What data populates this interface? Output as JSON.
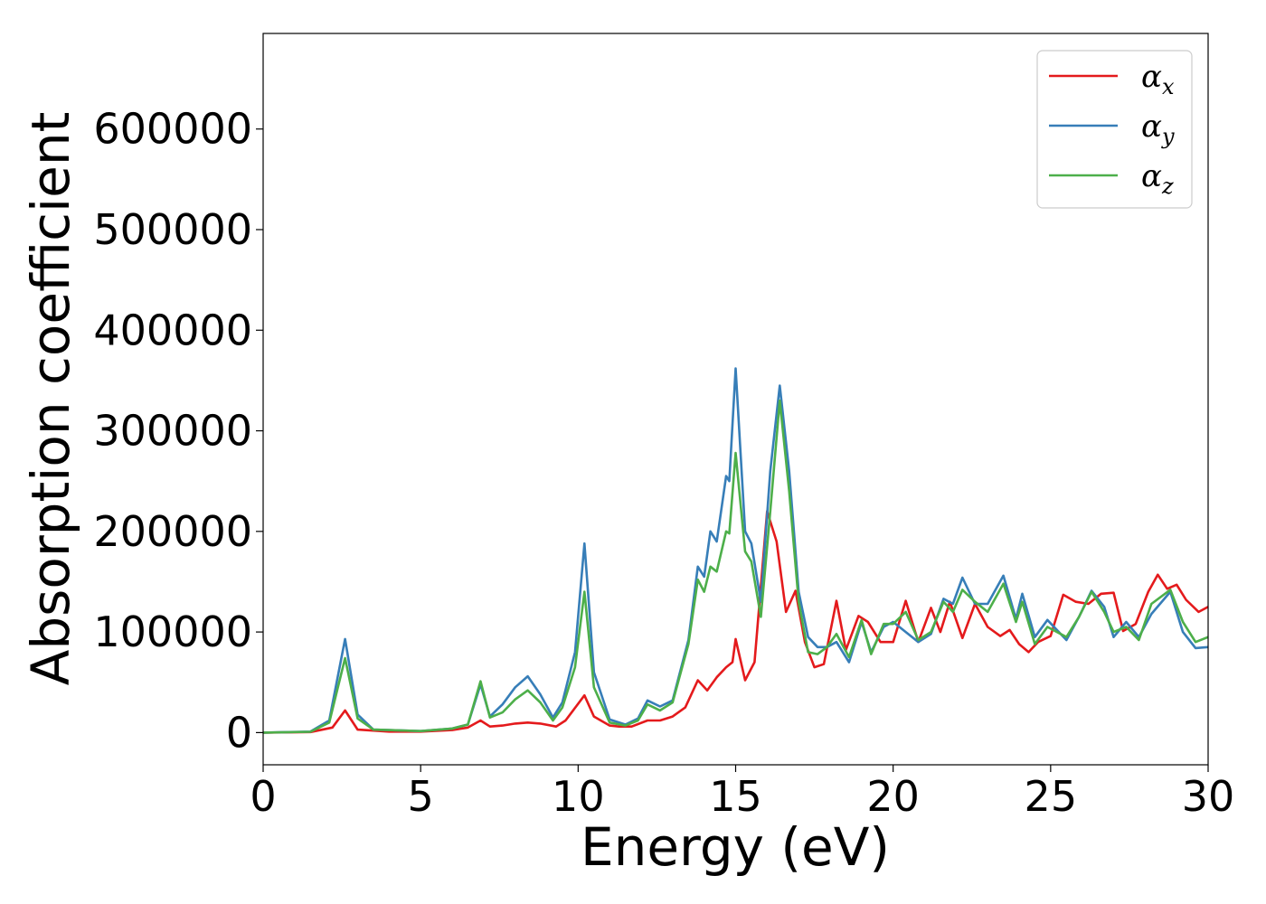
{
  "chart_data": {
    "type": "line",
    "xlabel": "Energy (eV)",
    "ylabel": "Absorption coefficient",
    "xlim": [
      0,
      30
    ],
    "ylim": [
      -32000,
      695000
    ],
    "xticks": [
      0,
      5,
      10,
      15,
      20,
      25,
      30
    ],
    "yticks": [
      0,
      100000,
      200000,
      300000,
      400000,
      500000,
      600000
    ],
    "grid": false,
    "legend_placement": "top-right",
    "series": [
      {
        "name": "αx",
        "symbol": "α",
        "subscript": "x",
        "color": "#e41a1c",
        "points": [
          [
            0,
            0
          ],
          [
            1.5,
            500
          ],
          [
            2.2,
            5000
          ],
          [
            2.6,
            22000
          ],
          [
            3.0,
            3000
          ],
          [
            4,
            1000
          ],
          [
            5,
            1000
          ],
          [
            6,
            2500
          ],
          [
            6.5,
            5000
          ],
          [
            6.9,
            12000
          ],
          [
            7.2,
            6000
          ],
          [
            7.6,
            7000
          ],
          [
            8,
            9000
          ],
          [
            8.4,
            10000
          ],
          [
            8.8,
            9000
          ],
          [
            9.3,
            6000
          ],
          [
            9.6,
            12000
          ],
          [
            10.2,
            37000
          ],
          [
            10.5,
            16000
          ],
          [
            11,
            7000
          ],
          [
            11.3,
            6000
          ],
          [
            11.7,
            6000
          ],
          [
            12.2,
            12000
          ],
          [
            12.6,
            12000
          ],
          [
            13,
            16000
          ],
          [
            13.4,
            25000
          ],
          [
            13.8,
            52000
          ],
          [
            14.1,
            42000
          ],
          [
            14.4,
            55000
          ],
          [
            14.7,
            65000
          ],
          [
            14.9,
            70000
          ],
          [
            15.0,
            93000
          ],
          [
            15.3,
            52000
          ],
          [
            15.6,
            70000
          ],
          [
            16.0,
            220000
          ],
          [
            16.3,
            190000
          ],
          [
            16.6,
            120000
          ],
          [
            16.9,
            141000
          ],
          [
            17.2,
            90000
          ],
          [
            17.5,
            65000
          ],
          [
            17.8,
            68000
          ],
          [
            18.2,
            131000
          ],
          [
            18.5,
            82000
          ],
          [
            18.9,
            116000
          ],
          [
            19.2,
            110000
          ],
          [
            19.6,
            90000
          ],
          [
            20,
            90000
          ],
          [
            20.4,
            131000
          ],
          [
            20.8,
            90000
          ],
          [
            21.2,
            124000
          ],
          [
            21.5,
            100000
          ],
          [
            21.8,
            130000
          ],
          [
            22.2,
            94000
          ],
          [
            22.6,
            128000
          ],
          [
            23,
            105000
          ],
          [
            23.4,
            96000
          ],
          [
            23.7,
            102000
          ],
          [
            24,
            88000
          ],
          [
            24.3,
            80000
          ],
          [
            24.6,
            90000
          ],
          [
            25,
            96000
          ],
          [
            25.4,
            137000
          ],
          [
            25.8,
            130000
          ],
          [
            26.2,
            128000
          ],
          [
            26.6,
            138000
          ],
          [
            27,
            139000
          ],
          [
            27.3,
            101000
          ],
          [
            27.7,
            108000
          ],
          [
            28.1,
            140000
          ],
          [
            28.4,
            157000
          ],
          [
            28.7,
            143000
          ],
          [
            29,
            147000
          ],
          [
            29.3,
            132000
          ],
          [
            29.7,
            120000
          ],
          [
            30,
            125000
          ]
        ]
      },
      {
        "name": "αy",
        "symbol": "α",
        "subscript": "y",
        "color": "#377eb8",
        "points": [
          [
            0,
            0
          ],
          [
            1.5,
            1000
          ],
          [
            2.1,
            12000
          ],
          [
            2.6,
            93000
          ],
          [
            3.0,
            18000
          ],
          [
            3.5,
            3000
          ],
          [
            5,
            1500
          ],
          [
            6,
            4000
          ],
          [
            6.5,
            8000
          ],
          [
            6.9,
            48000
          ],
          [
            7.2,
            16000
          ],
          [
            7.6,
            28000
          ],
          [
            8,
            45000
          ],
          [
            8.4,
            56000
          ],
          [
            8.8,
            38000
          ],
          [
            9.2,
            15000
          ],
          [
            9.5,
            30000
          ],
          [
            9.9,
            80000
          ],
          [
            10.2,
            188000
          ],
          [
            10.5,
            60000
          ],
          [
            11,
            13000
          ],
          [
            11.5,
            8000
          ],
          [
            11.9,
            14000
          ],
          [
            12.2,
            32000
          ],
          [
            12.6,
            26000
          ],
          [
            13,
            32000
          ],
          [
            13.5,
            92000
          ],
          [
            13.8,
            165000
          ],
          [
            14.0,
            155000
          ],
          [
            14.2,
            200000
          ],
          [
            14.4,
            190000
          ],
          [
            14.7,
            255000
          ],
          [
            14.8,
            250000
          ],
          [
            15.0,
            362000
          ],
          [
            15.3,
            200000
          ],
          [
            15.5,
            188000
          ],
          [
            15.8,
            130000
          ],
          [
            16.1,
            260000
          ],
          [
            16.4,
            345000
          ],
          [
            16.7,
            260000
          ],
          [
            17.0,
            140000
          ],
          [
            17.3,
            95000
          ],
          [
            17.6,
            85000
          ],
          [
            17.9,
            85000
          ],
          [
            18.2,
            90000
          ],
          [
            18.6,
            70000
          ],
          [
            19,
            110000
          ],
          [
            19.3,
            80000
          ],
          [
            19.7,
            105000
          ],
          [
            20,
            110000
          ],
          [
            20.4,
            100000
          ],
          [
            20.8,
            90000
          ],
          [
            21.2,
            98000
          ],
          [
            21.6,
            133000
          ],
          [
            21.9,
            128000
          ],
          [
            22.2,
            154000
          ],
          [
            22.6,
            128000
          ],
          [
            23,
            128000
          ],
          [
            23.5,
            156000
          ],
          [
            23.9,
            113000
          ],
          [
            24.1,
            138000
          ],
          [
            24.5,
            95000
          ],
          [
            24.9,
            112000
          ],
          [
            25.5,
            92000
          ],
          [
            25.9,
            115000
          ],
          [
            26.3,
            141000
          ],
          [
            26.7,
            125000
          ],
          [
            27,
            95000
          ],
          [
            27.4,
            110000
          ],
          [
            27.8,
            95000
          ],
          [
            28.2,
            118000
          ],
          [
            28.8,
            140000
          ],
          [
            29.2,
            100000
          ],
          [
            29.6,
            84000
          ],
          [
            30,
            85000
          ]
        ]
      },
      {
        "name": "αz",
        "symbol": "α",
        "subscript": "z",
        "color": "#4daf4a",
        "points": [
          [
            0,
            0
          ],
          [
            1.5,
            800
          ],
          [
            2.1,
            10000
          ],
          [
            2.6,
            74000
          ],
          [
            3.0,
            14000
          ],
          [
            3.5,
            3000
          ],
          [
            5,
            1500
          ],
          [
            6,
            4000
          ],
          [
            6.5,
            8000
          ],
          [
            6.9,
            51000
          ],
          [
            7.2,
            15000
          ],
          [
            7.6,
            20000
          ],
          [
            8,
            33000
          ],
          [
            8.4,
            42000
          ],
          [
            8.8,
            30000
          ],
          [
            9.2,
            12000
          ],
          [
            9.5,
            25000
          ],
          [
            9.9,
            65000
          ],
          [
            10.2,
            140000
          ],
          [
            10.5,
            45000
          ],
          [
            11,
            10000
          ],
          [
            11.5,
            7000
          ],
          [
            11.9,
            12000
          ],
          [
            12.2,
            28000
          ],
          [
            12.6,
            22000
          ],
          [
            13,
            30000
          ],
          [
            13.5,
            88000
          ],
          [
            13.8,
            152000
          ],
          [
            14.0,
            140000
          ],
          [
            14.2,
            165000
          ],
          [
            14.4,
            160000
          ],
          [
            14.7,
            200000
          ],
          [
            14.8,
            198000
          ],
          [
            15.0,
            278000
          ],
          [
            15.3,
            180000
          ],
          [
            15.5,
            170000
          ],
          [
            15.8,
            115000
          ],
          [
            16.1,
            220000
          ],
          [
            16.4,
            330000
          ],
          [
            16.7,
            240000
          ],
          [
            17.0,
            130000
          ],
          [
            17.3,
            80000
          ],
          [
            17.6,
            78000
          ],
          [
            17.9,
            85000
          ],
          [
            18.2,
            98000
          ],
          [
            18.6,
            75000
          ],
          [
            19,
            112000
          ],
          [
            19.3,
            78000
          ],
          [
            19.7,
            108000
          ],
          [
            20,
            108000
          ],
          [
            20.4,
            120000
          ],
          [
            20.8,
            92000
          ],
          [
            21.2,
            100000
          ],
          [
            21.6,
            130000
          ],
          [
            21.9,
            120000
          ],
          [
            22.2,
            142000
          ],
          [
            22.6,
            130000
          ],
          [
            23,
            120000
          ],
          [
            23.5,
            148000
          ],
          [
            23.9,
            110000
          ],
          [
            24.1,
            130000
          ],
          [
            24.5,
            88000
          ],
          [
            24.9,
            105000
          ],
          [
            25.5,
            95000
          ],
          [
            25.9,
            115000
          ],
          [
            26.3,
            140000
          ],
          [
            26.7,
            120000
          ],
          [
            27,
            100000
          ],
          [
            27.4,
            105000
          ],
          [
            27.8,
            92000
          ],
          [
            28.2,
            128000
          ],
          [
            28.8,
            142000
          ],
          [
            29.2,
            110000
          ],
          [
            29.6,
            90000
          ],
          [
            30,
            95000
          ]
        ]
      }
    ]
  }
}
